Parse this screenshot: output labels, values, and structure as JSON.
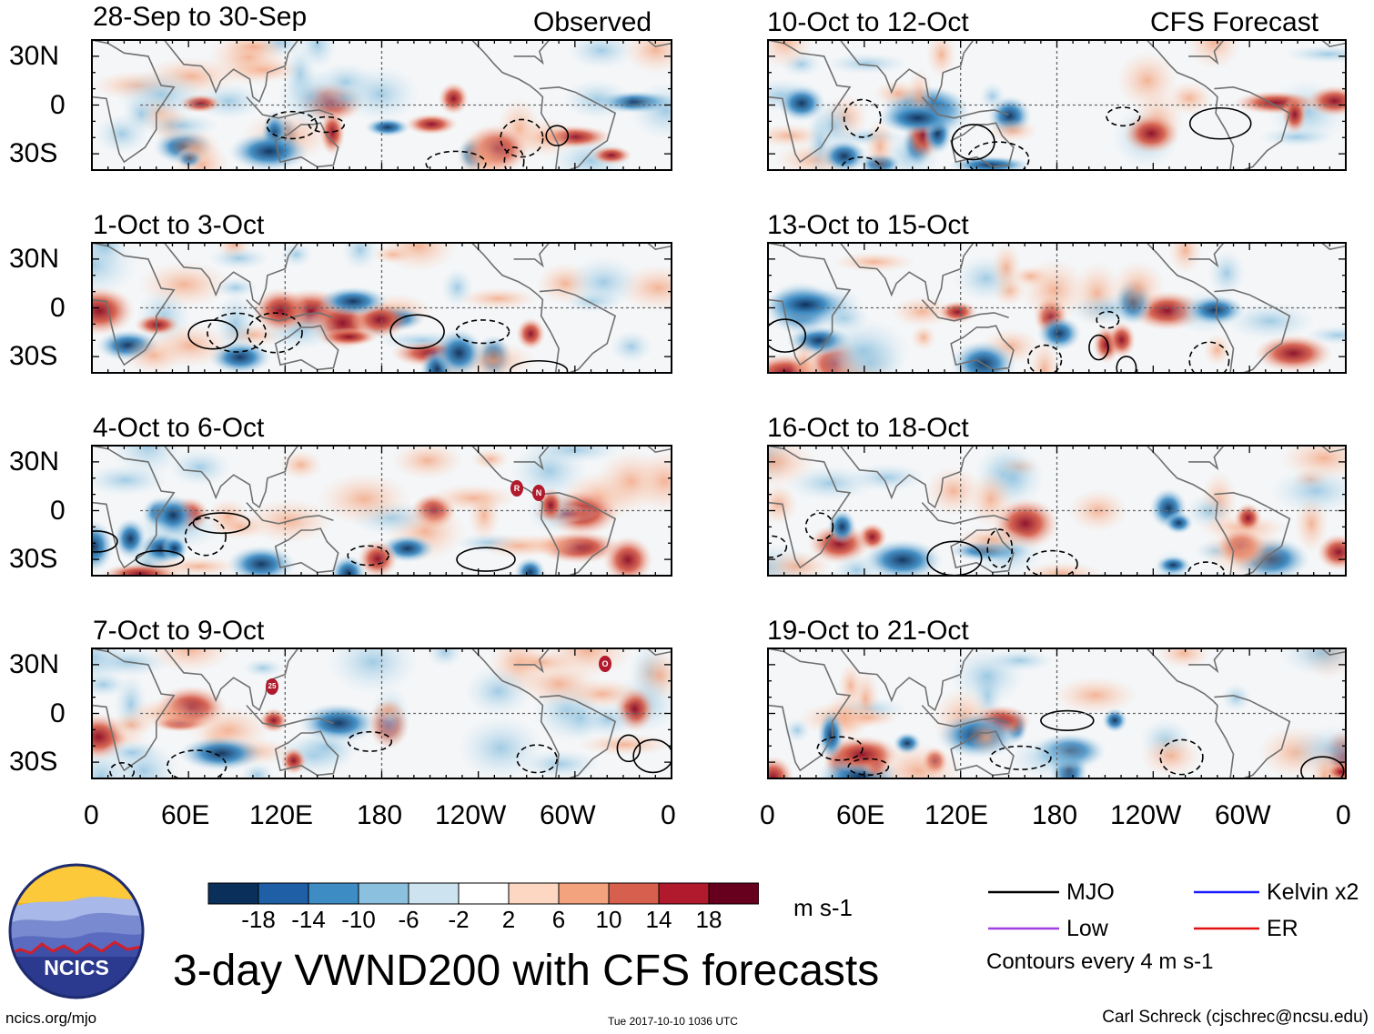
{
  "panels": {
    "observed_header": "Observed",
    "forecast_header": "CFS Forecast",
    "left": [
      {
        "period": "28-Sep to 30-Sep"
      },
      {
        "period": "1-Oct to 3-Oct"
      },
      {
        "period": "4-Oct to 6-Oct"
      },
      {
        "period": "7-Oct to 9-Oct"
      }
    ],
    "right": [
      {
        "period": "10-Oct to 12-Oct"
      },
      {
        "period": "13-Oct to 15-Oct"
      },
      {
        "period": "16-Oct to 18-Oct"
      },
      {
        "period": "19-Oct to 21-Oct"
      }
    ],
    "lat_labels": [
      "30N",
      "0",
      "30S"
    ],
    "lon_labels": [
      "0",
      "60E",
      "120E",
      "180",
      "120W",
      "60W",
      "0"
    ]
  },
  "storm_markers": [
    {
      "panel": 2,
      "label": "R"
    },
    {
      "panel": 2,
      "label": "N"
    },
    {
      "panel": 3,
      "label": "25"
    },
    {
      "panel": 3,
      "label": "O"
    }
  ],
  "colorbar": {
    "colors": [
      "#0b2f5b",
      "#1f5fa5",
      "#3e8cc4",
      "#8cc0df",
      "#cde4f0",
      "#ffffff",
      "#fdd7c2",
      "#f3a37e",
      "#d6604d",
      "#b01a2c",
      "#67001f"
    ],
    "labels": [
      "-18",
      "-14",
      "-10",
      "-6",
      "-2",
      "2",
      "6",
      "10",
      "14",
      "18"
    ],
    "units": "m s-1"
  },
  "legend": {
    "items": [
      {
        "label": "MJO",
        "color": "#000000"
      },
      {
        "label": "Kelvin x2",
        "color": "#1a1aff"
      },
      {
        "label": "Low",
        "color": "#a040e0"
      },
      {
        "label": "ER",
        "color": "#e01010"
      }
    ],
    "contours_note": "Contours every 4 m s-1"
  },
  "logo": {
    "text": "NCICS"
  },
  "title": "3-day VWND200 with CFS forecasts",
  "footer": {
    "url": "ncics.org/mjo",
    "timestamp": "Tue 2017-10-10 1036 UTC",
    "credit": "Carl Schreck (cjschrec@ncsu.edu)"
  }
}
